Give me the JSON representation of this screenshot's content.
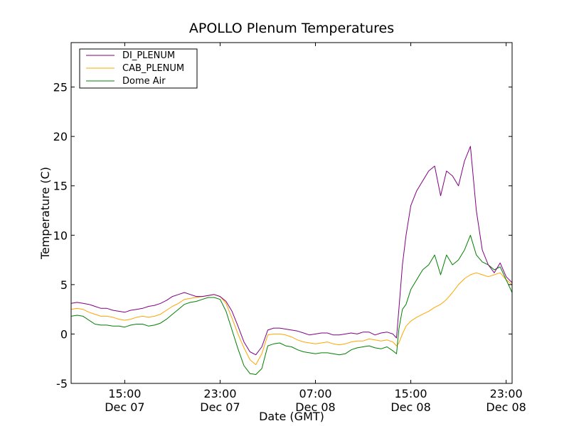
{
  "chart_data": {
    "type": "line",
    "title": "APOLLO Plenum Temperatures",
    "xlabel": "Date (GMT)",
    "ylabel": "Temperature (C)",
    "xlim": [
      10.5,
      47.5
    ],
    "ylim": [
      -5,
      29.5
    ],
    "x_unit": "hours since 00:00 GMT Dec 07",
    "yticks": [
      {
        "value": -5,
        "label": "-5"
      },
      {
        "value": 0,
        "label": "0"
      },
      {
        "value": 5,
        "label": "5"
      },
      {
        "value": 10,
        "label": "10"
      },
      {
        "value": 15,
        "label": "15"
      },
      {
        "value": 20,
        "label": "20"
      },
      {
        "value": 25,
        "label": "25"
      }
    ],
    "xticks": [
      {
        "value": 15,
        "time": "15:00",
        "date": "Dec 07"
      },
      {
        "value": 23,
        "time": "23:00",
        "date": "Dec 07"
      },
      {
        "value": 31,
        "time": "07:00",
        "date": "Dec 08"
      },
      {
        "value": 39,
        "time": "15:00",
        "date": "Dec 08"
      },
      {
        "value": 47,
        "time": "23:00",
        "date": "Dec 08"
      }
    ],
    "legend_position": "top-left",
    "series": [
      {
        "name": "DI_PLENUM",
        "color": "#800080",
        "x": [
          10.5,
          11.0,
          11.5,
          12.0,
          12.5,
          13.0,
          13.5,
          14.0,
          14.5,
          15.0,
          15.5,
          16.0,
          16.5,
          17.0,
          17.5,
          18.0,
          18.5,
          19.0,
          19.5,
          20.0,
          20.5,
          21.0,
          21.5,
          22.0,
          22.5,
          23.0,
          23.5,
          24.0,
          24.5,
          25.0,
          25.5,
          26.0,
          26.5,
          27.0,
          27.5,
          28.0,
          28.5,
          29.0,
          29.5,
          30.0,
          30.5,
          31.0,
          31.5,
          32.0,
          32.5,
          33.0,
          33.5,
          34.0,
          34.5,
          35.0,
          35.5,
          36.0,
          36.5,
          37.0,
          37.5,
          37.8,
          38.0,
          38.3,
          38.6,
          39.0,
          39.5,
          40.0,
          40.5,
          41.0,
          41.5,
          42.0,
          42.5,
          43.0,
          43.5,
          44.0,
          44.5,
          45.0,
          45.5,
          46.0,
          46.5,
          47.0,
          47.5
        ],
        "y": [
          3.1,
          3.2,
          3.1,
          3.0,
          2.8,
          2.6,
          2.6,
          2.4,
          2.3,
          2.2,
          2.4,
          2.5,
          2.6,
          2.8,
          2.9,
          3.1,
          3.4,
          3.8,
          4.0,
          4.2,
          4.0,
          3.8,
          3.8,
          3.9,
          4.0,
          3.8,
          3.3,
          2.3,
          0.8,
          -0.8,
          -1.8,
          -2.1,
          -1.3,
          0.4,
          0.6,
          0.6,
          0.5,
          0.4,
          0.3,
          0.1,
          -0.1,
          0.0,
          0.1,
          0.1,
          -0.1,
          -0.1,
          0.0,
          0.1,
          0.0,
          0.2,
          0.2,
          -0.1,
          0.1,
          0.2,
          0.0,
          -0.4,
          2.5,
          7.0,
          10.0,
          13.0,
          14.5,
          15.5,
          16.5,
          17.0,
          14.0,
          16.5,
          16.0,
          15.0,
          17.5,
          19.0,
          12.5,
          8.5,
          7.0,
          6.2,
          7.2,
          5.8,
          5.2
        ]
      },
      {
        "name": "CAB_PLENUM",
        "color": "#FFA500",
        "x": [
          10.5,
          11.0,
          11.5,
          12.0,
          12.5,
          13.0,
          13.5,
          14.0,
          14.5,
          15.0,
          15.5,
          16.0,
          16.5,
          17.0,
          17.5,
          18.0,
          18.5,
          19.0,
          19.5,
          20.0,
          20.5,
          21.0,
          21.5,
          22.0,
          22.5,
          23.0,
          23.5,
          24.0,
          24.5,
          25.0,
          25.5,
          26.0,
          26.5,
          27.0,
          27.5,
          28.0,
          28.5,
          29.0,
          29.5,
          30.0,
          30.5,
          31.0,
          31.5,
          32.0,
          32.5,
          33.0,
          33.5,
          34.0,
          34.5,
          35.0,
          35.5,
          36.0,
          36.5,
          37.0,
          37.5,
          37.8,
          38.0,
          38.3,
          38.6,
          39.0,
          39.5,
          40.0,
          40.5,
          41.0,
          41.5,
          42.0,
          42.5,
          43.0,
          43.5,
          44.0,
          44.5,
          45.0,
          45.5,
          46.0,
          46.5,
          47.0,
          47.5
        ],
        "y": [
          2.5,
          2.6,
          2.5,
          2.2,
          2.0,
          1.8,
          1.8,
          1.7,
          1.5,
          1.4,
          1.5,
          1.7,
          1.8,
          1.7,
          1.8,
          2.0,
          2.4,
          2.8,
          3.1,
          3.5,
          3.6,
          3.7,
          3.8,
          3.9,
          4.0,
          3.8,
          3.1,
          1.6,
          0.0,
          -1.4,
          -2.6,
          -3.1,
          -2.0,
          -0.1,
          0.0,
          0.0,
          -0.1,
          -0.3,
          -0.6,
          -0.8,
          -0.9,
          -1.0,
          -0.9,
          -0.8,
          -1.0,
          -1.1,
          -1.0,
          -0.8,
          -0.7,
          -0.7,
          -0.5,
          -0.6,
          -0.7,
          -0.6,
          -0.8,
          -1.2,
          -0.9,
          0.0,
          0.8,
          1.3,
          1.7,
          2.0,
          2.3,
          2.7,
          3.0,
          3.5,
          4.2,
          5.0,
          5.6,
          6.0,
          6.2,
          6.0,
          5.8,
          6.0,
          6.2,
          5.5,
          5.0
        ]
      },
      {
        "name": "Dome Air",
        "color": "#008000",
        "x": [
          10.5,
          11.0,
          11.5,
          12.0,
          12.5,
          13.0,
          13.5,
          14.0,
          14.5,
          15.0,
          15.5,
          16.0,
          16.5,
          17.0,
          17.5,
          18.0,
          18.5,
          19.0,
          19.5,
          20.0,
          20.5,
          21.0,
          21.5,
          22.0,
          22.5,
          23.0,
          23.5,
          24.0,
          24.5,
          25.0,
          25.5,
          26.0,
          26.5,
          27.0,
          27.5,
          28.0,
          28.5,
          29.0,
          29.5,
          30.0,
          30.5,
          31.0,
          31.5,
          32.0,
          32.5,
          33.0,
          33.5,
          34.0,
          34.5,
          35.0,
          35.5,
          36.0,
          36.5,
          37.0,
          37.5,
          37.8,
          38.0,
          38.3,
          38.6,
          39.0,
          39.5,
          40.0,
          40.5,
          41.0,
          41.5,
          42.0,
          42.5,
          43.0,
          43.5,
          44.0,
          44.5,
          45.0,
          45.5,
          46.0,
          46.5,
          47.0,
          47.5
        ],
        "y": [
          1.8,
          1.9,
          1.8,
          1.4,
          1.0,
          0.9,
          0.9,
          0.8,
          0.8,
          0.7,
          0.9,
          1.0,
          1.0,
          0.8,
          0.9,
          1.1,
          1.5,
          2.0,
          2.5,
          3.0,
          3.2,
          3.3,
          3.5,
          3.7,
          3.7,
          3.5,
          2.3,
          0.4,
          -1.5,
          -3.2,
          -4.0,
          -4.1,
          -3.5,
          -1.2,
          -1.0,
          -0.9,
          -1.2,
          -1.3,
          -1.6,
          -1.8,
          -1.9,
          -2.0,
          -1.9,
          -1.9,
          -2.0,
          -2.1,
          -2.0,
          -1.6,
          -1.4,
          -1.3,
          -1.2,
          -1.4,
          -1.5,
          -1.3,
          -1.7,
          -2.0,
          0.5,
          2.5,
          3.0,
          4.5,
          5.5,
          6.5,
          7.0,
          8.0,
          6.0,
          8.0,
          7.0,
          7.5,
          8.5,
          10.0,
          8.0,
          7.3,
          7.0,
          6.5,
          6.8,
          5.5,
          4.2
        ]
      }
    ]
  }
}
